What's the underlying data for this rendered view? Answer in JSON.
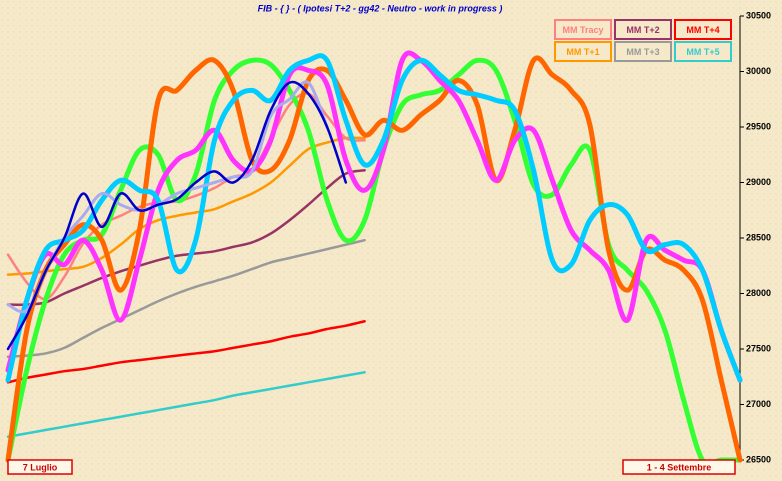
{
  "chart_data": {
    "type": "line",
    "title": "FIB - { } - ( Ipotesi T+2 - gg42 - Neutro - work in progress )",
    "annotations": [
      "7 Luglio",
      "1 - 4 Settembre"
    ],
    "ylim": [
      26500,
      30500
    ],
    "yticks": [
      26500,
      27000,
      27500,
      28000,
      28500,
      29000,
      29500,
      30000,
      30500
    ],
    "legend": "top-right",
    "series": [
      {
        "name": "MM Tracy",
        "color": "#ff8080",
        "width": 2.5,
        "values": [
          28350,
          28100,
          27950,
          28150,
          28450,
          28620,
          28700,
          28780,
          28820,
          28830,
          28880,
          28950,
          29050,
          29100,
          29400,
          29700,
          29800,
          29600,
          29400,
          29380,
          null,
          null,
          null,
          null,
          null,
          null,
          null,
          null,
          null,
          null,
          null,
          null,
          null,
          null,
          null,
          null,
          null,
          null,
          null,
          null
        ]
      },
      {
        "name": "MM T+2",
        "color": "#993366",
        "width": 2.5,
        "values": [
          27900,
          27900,
          27920,
          28000,
          28070,
          28140,
          28200,
          28250,
          28300,
          28340,
          28360,
          28380,
          28420,
          28460,
          28540,
          28660,
          28800,
          28950,
          29080,
          29110,
          null,
          null,
          null,
          null,
          null,
          null,
          null,
          null,
          null,
          null,
          null,
          null,
          null,
          null,
          null,
          null,
          null,
          null,
          null,
          null
        ]
      },
      {
        "name": "MM T+4",
        "color": "#ff0000",
        "width": 2.5,
        "values": [
          27200,
          27240,
          27270,
          27300,
          27320,
          27350,
          27380,
          27400,
          27420,
          27440,
          27460,
          27480,
          27510,
          27540,
          27570,
          27610,
          27640,
          27680,
          27710,
          27750,
          null,
          null,
          null,
          null,
          null,
          null,
          null,
          null,
          null,
          null,
          null,
          null,
          null,
          null,
          null,
          null,
          null,
          null,
          null,
          null
        ]
      },
      {
        "name": "MM T+1",
        "color": "#ff9900",
        "width": 2.5,
        "values": [
          28170,
          28180,
          28200,
          28220,
          28240,
          28320,
          28440,
          28580,
          28660,
          28700,
          28730,
          28760,
          28830,
          28900,
          29000,
          29150,
          29300,
          29360,
          29400,
          29400,
          null,
          null,
          null,
          null,
          null,
          null,
          null,
          null,
          null,
          null,
          null,
          null,
          null,
          null,
          null,
          null,
          null,
          null,
          null,
          null
        ]
      },
      {
        "name": "MM T+3",
        "color": "#999999",
        "width": 2.5,
        "values": [
          27430,
          27440,
          27460,
          27510,
          27600,
          27690,
          27770,
          27850,
          27930,
          28000,
          28060,
          28110,
          28160,
          28220,
          28280,
          28320,
          28360,
          28400,
          28440,
          28480,
          null,
          null,
          null,
          null,
          null,
          null,
          null,
          null,
          null,
          null,
          null,
          null,
          null,
          null,
          null,
          null,
          null,
          null,
          null,
          null
        ]
      },
      {
        "name": "MM T+5",
        "color": "#33cccc",
        "width": 2.5,
        "values": [
          26710,
          26740,
          26770,
          26800,
          26830,
          26860,
          26890,
          26920,
          26950,
          26980,
          27010,
          27040,
          27080,
          27110,
          27140,
          27170,
          27200,
          27230,
          27260,
          27290,
          null,
          null,
          null,
          null,
          null,
          null,
          null,
          null,
          null,
          null,
          null,
          null,
          null,
          null,
          null,
          null,
          null,
          null,
          null,
          null
        ]
      },
      {
        "color": "#33ff33",
        "width": 5,
        "values": [
          26500,
          27310,
          27940,
          28350,
          28480,
          28530,
          28930,
          29290,
          29250,
          28840,
          29070,
          29740,
          30010,
          30100,
          30060,
          29830,
          29470,
          28840,
          28480,
          28660,
          29290,
          29700,
          29790,
          29830,
          29970,
          30100,
          30010,
          29560,
          28980,
          28890,
          29160,
          29290,
          28440,
          28210,
          28030,
          27670,
          27040,
          26500,
          26500,
          26500
        ]
      },
      {
        "color": "#ff6600",
        "width": 5,
        "values": [
          26500,
          27670,
          28210,
          28440,
          28620,
          28480,
          28030,
          28570,
          29740,
          29830,
          30010,
          30100,
          29830,
          29200,
          29110,
          29380,
          29920,
          30010,
          29740,
          29430,
          29560,
          29470,
          29610,
          29740,
          29920,
          29700,
          29020,
          29470,
          30100,
          29970,
          29830,
          29520,
          28390,
          28030,
          28390,
          28300,
          28210,
          27940,
          27220,
          26500
        ]
      },
      {
        "color": "#ff33ff",
        "width": 5,
        "values": [
          27310,
          27940,
          28350,
          28260,
          28480,
          28210,
          27760,
          28300,
          28930,
          29200,
          29290,
          29470,
          29200,
          29110,
          29380,
          29970,
          30010,
          29880,
          29200,
          28930,
          29290,
          30100,
          30100,
          29920,
          29740,
          29380,
          29020,
          29380,
          29470,
          29020,
          28570,
          28390,
          28210,
          27760,
          28480,
          28390,
          28300,
          28210,
          27670,
          27220
        ]
      },
      {
        "color": "#00ccff",
        "width": 5,
        "values": [
          27220,
          27940,
          28390,
          28480,
          28570,
          28840,
          29020,
          28930,
          28840,
          28210,
          28480,
          29380,
          29740,
          29830,
          29740,
          30010,
          30100,
          30100,
          29560,
          29160,
          29380,
          29920,
          30100,
          29970,
          29830,
          29790,
          29740,
          29650,
          29110,
          28300,
          28260,
          28660,
          28800,
          28710,
          28390,
          28440,
          28440,
          28210,
          27670,
          27220
        ]
      },
      {
        "color": "#aaaaee",
        "width": 3,
        "values": [
          27900,
          27850,
          28200,
          28500,
          28700,
          28900,
          28800,
          28750,
          28800,
          28900,
          28950,
          29000,
          29050,
          29100,
          29600,
          29750,
          29900,
          29500,
          null,
          null,
          null,
          null,
          null,
          null,
          null,
          null,
          null,
          null,
          null,
          null,
          null,
          null,
          null,
          null,
          null,
          null,
          null,
          null,
          null,
          null
        ]
      },
      {
        "color": "#0000cc",
        "width": 2.5,
        "values": [
          27500,
          27800,
          28200,
          28500,
          28900,
          28600,
          28900,
          28750,
          28800,
          28850,
          29000,
          29100,
          29000,
          29200,
          29650,
          29900,
          29800,
          29500,
          29000,
          null,
          null,
          null,
          null,
          null,
          null,
          null,
          null,
          null,
          null,
          null,
          null,
          null,
          null,
          null,
          null,
          null,
          null,
          null,
          null,
          null
        ]
      }
    ]
  }
}
